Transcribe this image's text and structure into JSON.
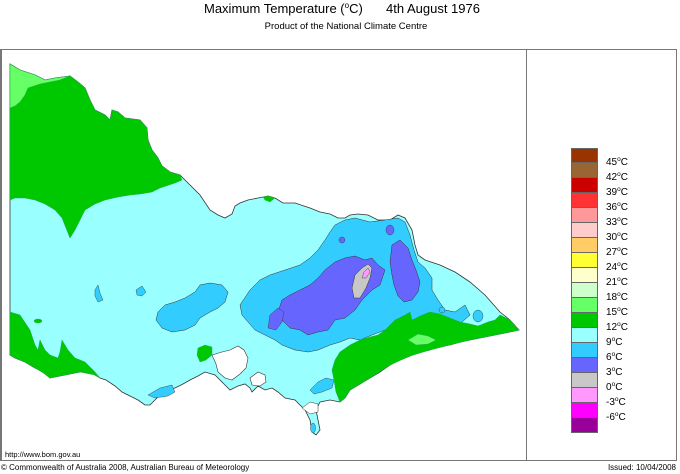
{
  "header": {
    "title": "Maximum Temperature (°C)",
    "title_prefix": "Maximum Temperature (",
    "title_degree": "o",
    "title_suffix": "C)",
    "date": "4th August 1976",
    "subtitle": "Product of the National Climate Centre"
  },
  "map": {
    "region": "Victoria, Australia",
    "colors": {
      "background": "#ffffff",
      "band_9_12": "#99ffff",
      "band_6_9": "#33ccff",
      "band_3_6": "#6666ff",
      "band_0_3": "#c8c8c8",
      "band_neg3_0": "#ff99ff",
      "band_12_15": "#00c800",
      "band_15_18": "#66ff66",
      "coast": "#333333"
    }
  },
  "legend": {
    "items": [
      {
        "label": "45",
        "color": "#993300"
      },
      {
        "label": "42",
        "color": "#996633"
      },
      {
        "label": "39",
        "color": "#cc0000"
      },
      {
        "label": "36",
        "color": "#ff3333"
      },
      {
        "label": "33",
        "color": "#ff9999"
      },
      {
        "label": "30",
        "color": "#ffcccc"
      },
      {
        "label": "27",
        "color": "#ffcc66"
      },
      {
        "label": "24",
        "color": "#ffff33"
      },
      {
        "label": "21",
        "color": "#ffffcc"
      },
      {
        "label": "18",
        "color": "#ccffcc"
      },
      {
        "label": "15",
        "color": "#66ff66"
      },
      {
        "label": "12",
        "color": "#00c800"
      },
      {
        "label": "9",
        "color": "#99ffff"
      },
      {
        "label": "6",
        "color": "#33ccff"
      },
      {
        "label": "3",
        "color": "#6666ff"
      },
      {
        "label": "0",
        "color": "#c8c8c8"
      },
      {
        "label": "-3",
        "color": "#ff99ff"
      },
      {
        "label": "-6",
        "color": "#ff00ff"
      },
      {
        "label": "",
        "color": "#990099"
      }
    ],
    "unit_degree": "o",
    "unit": "C"
  },
  "footer": {
    "url": "http://www.bom.gov.au",
    "copyright": "© Commonwealth of Australia 2008, Australian Bureau of Meteorology",
    "issued": "Issued: 10/04/2008"
  }
}
